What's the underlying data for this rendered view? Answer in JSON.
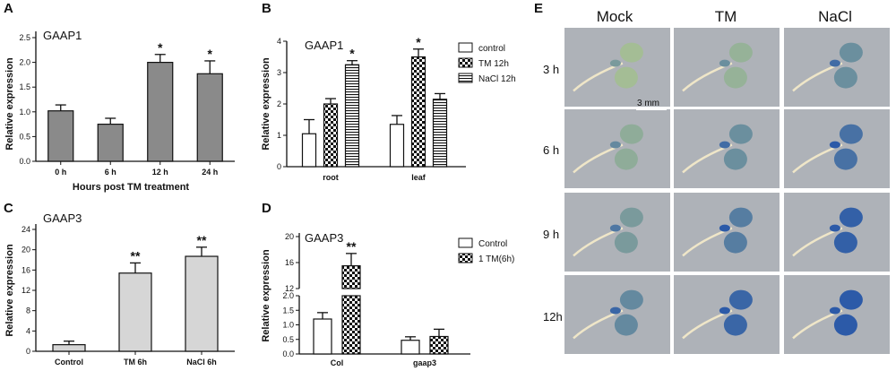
{
  "panels": {
    "A": {
      "letter": "A"
    },
    "B": {
      "letter": "B"
    },
    "C": {
      "letter": "C"
    },
    "D": {
      "letter": "D"
    },
    "E": {
      "letter": "E",
      "columns": [
        "Mock",
        "TM",
        "NaCl"
      ],
      "rows": [
        "3 h",
        "6 h",
        "9 h",
        "12h"
      ],
      "scale_bar": "3 mm"
    }
  },
  "colors": {
    "gray_bar": "#8a8a8a",
    "light_bar": "#d6d6d6",
    "photo_bg": "#aeb2b8",
    "stain_blue": "#2c5aa8"
  },
  "chart_data": [
    {
      "id": "A",
      "type": "bar",
      "title": "GAAP1",
      "ylabel": "Relative expression",
      "xlabel": "Hours post TM treatment",
      "categories": [
        "0 h",
        "6 h",
        "12 h",
        "24 h"
      ],
      "values": [
        1.02,
        0.75,
        2.0,
        1.77
      ],
      "errors": [
        0.12,
        0.12,
        0.16,
        0.26
      ],
      "significance": [
        "",
        "",
        "*",
        "*"
      ],
      "ylim": [
        0,
        2.5
      ],
      "yticks": [
        "0.0",
        "0.5",
        "1.0",
        "1.5",
        "2.0",
        "2.5"
      ],
      "fill": "gray"
    },
    {
      "id": "B",
      "type": "bar",
      "title": "GAAP1",
      "ylabel": "Relative expression",
      "categories": [
        "root",
        "leaf"
      ],
      "series": [
        {
          "name": "control",
          "values": [
            1.05,
            1.35
          ],
          "errors": [
            0.45,
            0.28
          ],
          "pattern": "open"
        },
        {
          "name": "TM 12h",
          "values": [
            2.0,
            3.5
          ],
          "errors": [
            0.17,
            0.25
          ],
          "pattern": "checker"
        },
        {
          "name": "NaCl 12h",
          "values": [
            3.25,
            2.15
          ],
          "errors": [
            0.13,
            0.18
          ],
          "pattern": "hlines"
        }
      ],
      "significance": [
        [
          "",
          "",
          "*"
        ],
        [
          "",
          "*",
          ""
        ]
      ],
      "ylim": [
        0,
        4
      ],
      "yticks": [
        "0",
        "1",
        "2",
        "3",
        "4"
      ],
      "legend": "top-right"
    },
    {
      "id": "C",
      "type": "bar",
      "title": "GAAP3",
      "ylabel": "Relative expression",
      "categories": [
        "Control",
        "TM 6h",
        "NaCl 6h"
      ],
      "values": [
        1.3,
        15.4,
        18.7
      ],
      "errors": [
        0.7,
        2.0,
        1.8
      ],
      "significance": [
        "",
        "**",
        "**"
      ],
      "ylim": [
        0,
        24
      ],
      "yticks": [
        "0",
        "4",
        "8",
        "12",
        "16",
        "20",
        "24"
      ],
      "fill": "light"
    },
    {
      "id": "D",
      "type": "bar",
      "title": "GAAP3",
      "ylabel": "Relative expression",
      "categories": [
        "Col",
        "gaap3"
      ],
      "series": [
        {
          "name": "Control",
          "values": [
            1.2,
            0.47
          ],
          "errors": [
            0.22,
            0.12
          ],
          "pattern": "open"
        },
        {
          "name": "1 TM(6h)",
          "values": [
            15.5,
            0.6
          ],
          "errors": [
            1.9,
            0.25
          ],
          "pattern": "checker"
        }
      ],
      "significance": [
        [
          "",
          "**"
        ],
        [
          "",
          ""
        ]
      ],
      "ylim_lower": [
        0,
        2.0
      ],
      "ylim_upper": [
        12,
        20
      ],
      "yticks_lower": [
        "0.0",
        "0.5",
        "1.0",
        "1.5",
        "2.0"
      ],
      "yticks_upper": [
        "12",
        "16",
        "20"
      ],
      "broken_axis": true,
      "legend": "top-right"
    }
  ]
}
